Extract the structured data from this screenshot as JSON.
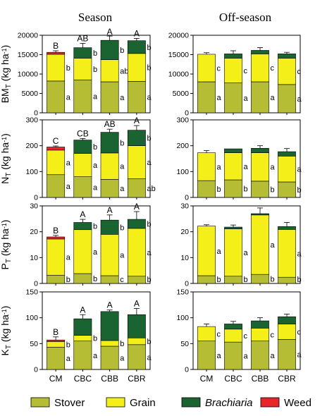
{
  "headers": [
    "Season",
    "Off-season"
  ],
  "categories": [
    "CM",
    "CBC",
    "CBB",
    "CBR"
  ],
  "colors": {
    "stover": "#b5bd35",
    "grain": "#f4ef18",
    "brachiaria": "#1a6432",
    "weed": "#e8262a"
  },
  "legend": [
    {
      "key": "stover",
      "label": "Stover"
    },
    {
      "key": "grain",
      "label": "Grain"
    },
    {
      "key": "brachiaria",
      "label": "Brachiaria",
      "italic": true
    },
    {
      "key": "weed",
      "label": "Weed"
    }
  ],
  "chart_data": [
    {
      "type": "bar",
      "stacked": true,
      "panel": "season",
      "ylabel": {
        "main": "BM",
        "sub": "T",
        "unit": " (kg ha",
        "sup": "-1",
        "close": ")"
      },
      "ylim": [
        0,
        20000
      ],
      "yticks": [
        0,
        5000,
        10000,
        15000,
        20000
      ],
      "series": [
        {
          "name": "Stover",
          "key": "stover",
          "values": [
            8200,
            8500,
            8000,
            8100
          ],
          "err": [
            150,
            300,
            0,
            0
          ],
          "letters": [
            "a",
            "a",
            "a",
            "a"
          ]
        },
        {
          "name": "Grain",
          "key": "grain",
          "values": [
            6900,
            5600,
            5700,
            7200
          ],
          "err": [
            0,
            0,
            200,
            0
          ],
          "letters": [
            "b",
            "b",
            "ab",
            "b"
          ]
        },
        {
          "name": "Brachiaria",
          "key": "brachiaria",
          "values": [
            0,
            2700,
            5000,
            3300
          ],
          "err": [
            0,
            0,
            0,
            0
          ],
          "letters": [
            "",
            "b",
            "b",
            "b"
          ]
        },
        {
          "name": "Weed",
          "key": "weed",
          "values": [
            500,
            0,
            0,
            0
          ],
          "err": [
            0,
            0,
            0,
            0
          ],
          "letters": [
            "",
            "",
            "",
            ""
          ]
        }
      ],
      "top_err": [
        400,
        1100,
        1100,
        600
      ],
      "top_letters": [
        "B",
        "AB",
        "A",
        "A"
      ]
    },
    {
      "type": "bar",
      "stacked": true,
      "panel": "off-season",
      "ylim": [
        0,
        20000
      ],
      "yticks": [
        0,
        5000,
        10000,
        15000,
        20000
      ],
      "series": [
        {
          "name": "Stover",
          "key": "stover",
          "values": [
            8000,
            7700,
            8000,
            7300
          ],
          "err": [
            0,
            0,
            0,
            0
          ],
          "letters": [
            "a",
            "a",
            "a",
            "a"
          ]
        },
        {
          "name": "Grain",
          "key": "grain",
          "values": [
            7100,
            6400,
            7200,
            6800
          ],
          "err": [
            0,
            0,
            0,
            0
          ],
          "letters": [
            "c",
            "c",
            "c",
            "c"
          ]
        },
        {
          "name": "Brachiaria",
          "key": "brachiaria",
          "values": [
            0,
            1100,
            900,
            1100
          ],
          "err": [
            0,
            0,
            0,
            0
          ],
          "letters": [
            "",
            "",
            "",
            ""
          ]
        }
      ],
      "top_err": [
        400,
        800,
        700,
        400
      ],
      "top_letters": [
        "",
        "",
        "",
        ""
      ]
    },
    {
      "type": "bar",
      "stacked": true,
      "panel": "season",
      "ylabel": {
        "main": "N",
        "sub": "T",
        "unit": " (kg ha",
        "sup": "-1",
        "close": ")"
      },
      "ylim": [
        0,
        300
      ],
      "yticks": [
        0,
        100,
        200,
        300
      ],
      "series": [
        {
          "name": "Stover",
          "key": "stover",
          "values": [
            88,
            80,
            70,
            72
          ],
          "err": [
            7,
            0,
            0,
            0
          ],
          "letters": [
            "a",
            "a",
            "a",
            "ab"
          ]
        },
        {
          "name": "Grain",
          "key": "grain",
          "values": [
            95,
            90,
            102,
            128
          ],
          "err": [
            0,
            0,
            0,
            6
          ],
          "letters": [
            "a",
            "a",
            "a",
            "a"
          ]
        },
        {
          "name": "Brachiaria",
          "key": "brachiaria",
          "values": [
            0,
            52,
            80,
            60
          ],
          "err": [
            0,
            0,
            0,
            0
          ],
          "letters": [
            "",
            "b",
            "b",
            "b"
          ]
        },
        {
          "name": "Weed",
          "key": "weed",
          "values": [
            12,
            0,
            0,
            0
          ],
          "err": [
            0,
            0,
            0,
            0
          ],
          "letters": [
            "",
            "",
            "",
            ""
          ]
        }
      ],
      "top_err": [
        4,
        6,
        12,
        18
      ],
      "top_letters": [
        "C",
        "CB",
        "AB",
        "A"
      ]
    },
    {
      "type": "bar",
      "stacked": true,
      "panel": "off-season",
      "ylim": [
        0,
        300
      ],
      "yticks": [
        0,
        100,
        200,
        300
      ],
      "series": [
        {
          "name": "Stover",
          "key": "stover",
          "values": [
            65,
            68,
            63,
            60
          ],
          "err": [
            4,
            0,
            5,
            0
          ],
          "letters": [
            "b",
            "b",
            "b",
            "b"
          ]
        },
        {
          "name": "Grain",
          "key": "grain",
          "values": [
            108,
            105,
            110,
            100
          ],
          "err": [
            0,
            0,
            0,
            0
          ],
          "letters": [
            "a",
            "a",
            "a",
            "a"
          ]
        },
        {
          "name": "Brachiaria",
          "key": "brachiaria",
          "values": [
            0,
            15,
            17,
            17
          ],
          "err": [
            0,
            0,
            0,
            0
          ],
          "letters": [
            "",
            "",
            "",
            ""
          ]
        }
      ],
      "top_err": [
        8,
        0,
        10,
        12
      ],
      "top_letters": [
        "",
        "",
        "",
        ""
      ]
    },
    {
      "type": "bar",
      "stacked": true,
      "panel": "season",
      "ylabel": {
        "main": "P",
        "sub": "T",
        "unit": " (kg ha",
        "sup": "-1",
        "close": ")"
      },
      "ylim": [
        0,
        30
      ],
      "yticks": [
        0,
        10,
        20,
        30
      ],
      "series": [
        {
          "name": "Stover",
          "key": "stover",
          "values": [
            3.2,
            3.8,
            3.0,
            2.8
          ],
          "err": [
            0,
            0,
            0,
            0
          ],
          "letters": [
            "b",
            "b",
            "c",
            "b"
          ]
        },
        {
          "name": "Grain",
          "key": "grain",
          "values": [
            14.0,
            17.0,
            16.0,
            18.5
          ],
          "err": [
            0,
            0,
            0,
            0
          ],
          "letters": [
            "a",
            "a",
            "a",
            "a"
          ]
        },
        {
          "name": "Brachiaria",
          "key": "brachiaria",
          "values": [
            0,
            2.8,
            5.5,
            3.5
          ],
          "err": [
            0,
            0,
            0,
            0
          ],
          "letters": [
            "",
            "b",
            "b",
            "b"
          ]
        },
        {
          "name": "Weed",
          "key": "weed",
          "values": [
            0.8,
            0,
            0,
            0
          ],
          "err": [
            0,
            0,
            0,
            0
          ],
          "letters": [
            "",
            "",
            "",
            ""
          ]
        }
      ],
      "top_err": [
        0.6,
        1.2,
        2.0,
        3.0
      ],
      "top_letters": [
        "B",
        "A",
        "A",
        "A"
      ]
    },
    {
      "type": "bar",
      "stacked": true,
      "panel": "off-season",
      "ylim": [
        0,
        30
      ],
      "yticks": [
        0,
        10,
        20,
        30
      ],
      "series": [
        {
          "name": "Stover",
          "key": "stover",
          "values": [
            3.0,
            2.8,
            3.5,
            2.4
          ],
          "err": [
            0,
            0,
            0,
            0
          ],
          "letters": [
            "b",
            "b",
            "b",
            "b"
          ]
        },
        {
          "name": "Grain",
          "key": "grain",
          "values": [
            19.2,
            18.3,
            23.0,
            18.5
          ],
          "err": [
            0,
            0,
            0,
            0
          ],
          "letters": [
            "a",
            "a",
            "a",
            "a"
          ]
        },
        {
          "name": "Brachiaria",
          "key": "brachiaria",
          "values": [
            0,
            0.7,
            0.5,
            1.1
          ],
          "err": [
            0,
            0,
            0,
            0
          ],
          "letters": [
            "",
            "",
            "",
            ""
          ]
        }
      ],
      "top_err": [
        0.5,
        0.8,
        2.2,
        1.6
      ],
      "top_letters": [
        "",
        "",
        "",
        ""
      ]
    },
    {
      "type": "bar",
      "stacked": true,
      "panel": "season",
      "ylabel": {
        "main": "K",
        "sub": "T",
        "unit": " (kg ha",
        "sup": "-1",
        "close": ")"
      },
      "ylim": [
        0,
        150
      ],
      "yticks": [
        0,
        50,
        100,
        150
      ],
      "series": [
        {
          "name": "Stover",
          "key": "stover",
          "values": [
            43,
            55,
            45,
            48
          ],
          "err": [
            0,
            3,
            0,
            0
          ],
          "letters": [
            "a",
            "a",
            "a",
            "a"
          ]
        },
        {
          "name": "Grain",
          "key": "grain",
          "values": [
            11,
            11,
            11,
            13
          ],
          "err": [
            0,
            5,
            0,
            0
          ],
          "letters": [
            "b",
            "b",
            "b",
            "b"
          ]
        },
        {
          "name": "Brachiaria",
          "key": "brachiaria",
          "values": [
            0,
            32,
            56,
            45
          ],
          "err": [
            0,
            0,
            0,
            0
          ],
          "letters": [
            "",
            "",
            "",
            ""
          ]
        },
        {
          "name": "Weed",
          "key": "weed",
          "values": [
            3,
            0,
            0,
            0
          ],
          "err": [
            0,
            0,
            0,
            0
          ],
          "letters": [
            "",
            "",
            "",
            ""
          ]
        }
      ],
      "top_err": [
        6,
        8,
        3,
        12
      ],
      "top_letters": [
        "B",
        "A",
        "A",
        "A"
      ]
    },
    {
      "type": "bar",
      "stacked": true,
      "panel": "off-season",
      "ylim": [
        0,
        150
      ],
      "yticks": [
        0,
        50,
        100,
        150
      ],
      "series": [
        {
          "name": "Stover",
          "key": "stover",
          "values": [
            55,
            53,
            55,
            58
          ],
          "err": [
            3,
            3,
            0,
            4
          ],
          "letters": [
            "a",
            "a",
            "a",
            "a"
          ]
        },
        {
          "name": "Grain",
          "key": "grain",
          "values": [
            28,
            25,
            25,
            30
          ],
          "err": [
            0,
            0,
            0,
            0
          ],
          "letters": [
            "c",
            "c",
            "c",
            "c"
          ]
        },
        {
          "name": "Brachiaria",
          "key": "brachiaria",
          "values": [
            0,
            10,
            14,
            14
          ],
          "err": [
            0,
            0,
            0,
            0
          ],
          "letters": [
            "",
            "",
            "",
            ""
          ]
        }
      ],
      "top_err": [
        5,
        5,
        6,
        5
      ],
      "top_letters": [
        "",
        "",
        "",
        ""
      ]
    }
  ]
}
